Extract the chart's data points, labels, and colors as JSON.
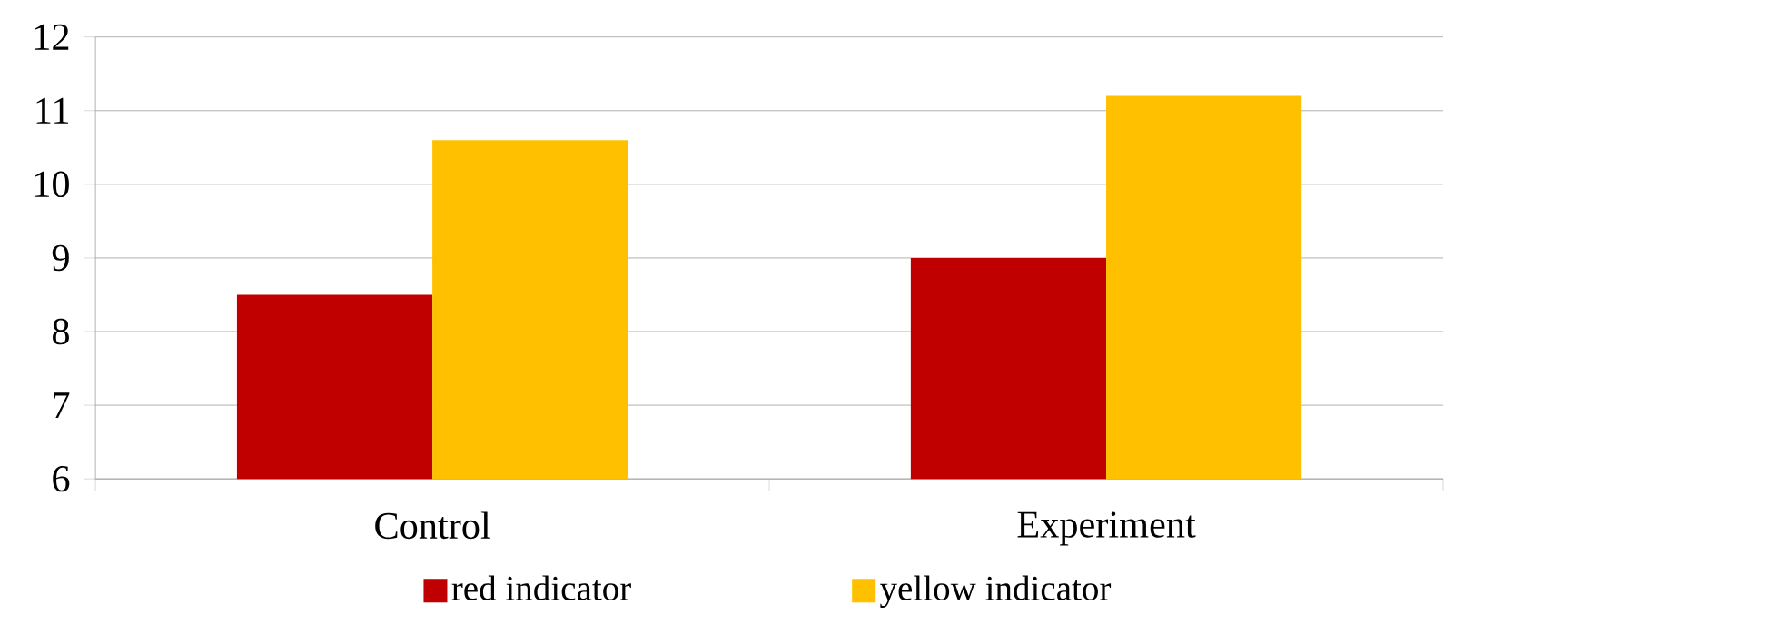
{
  "chart_data": {
    "type": "bar",
    "categories": [
      "Control",
      "Experiment"
    ],
    "series": [
      {
        "name": "red indicator",
        "color": "#c00000",
        "values": [
          8.5,
          9.0
        ]
      },
      {
        "name": "yellow indicator",
        "color": "#ffc000",
        "values": [
          10.6,
          11.2
        ]
      }
    ],
    "ylim": [
      6,
      12
    ],
    "yticks": [
      6,
      7,
      8,
      9,
      10,
      11,
      12
    ],
    "grid": "y",
    "legend": "bottom"
  }
}
